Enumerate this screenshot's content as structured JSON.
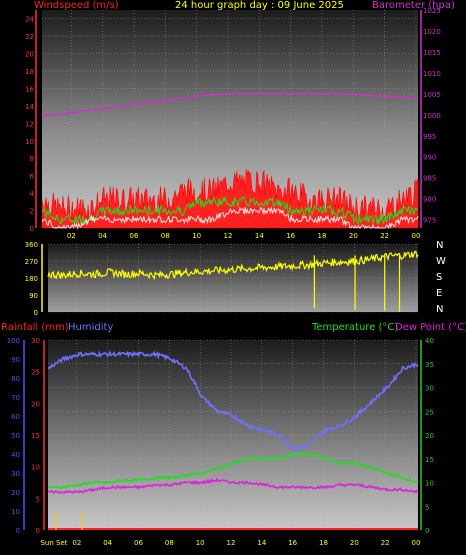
{
  "header": {
    "title": "24 hour graph day : 09 June 2025",
    "wind_label": "Windspeed (m/s)",
    "baro_label": "Barometer (hpa)"
  },
  "bottom_labels": {
    "rain": "Rainfall (mm)",
    "humidity": "Humidity",
    "temperature": "Temperature (°C)",
    "dewpoint": "Dew Point (°C)"
  },
  "compass": [
    "N",
    "W",
    "S",
    "E",
    "N"
  ],
  "colors": {
    "wind": "#ff0000",
    "gust": "#ff2020",
    "baro": "#cc33cc",
    "winddir": "#ffff00",
    "humidity": "#7070ff",
    "temperature": "#22dd22",
    "dewpoint": "#dd22dd",
    "rain": "#ff2020",
    "axis_left": "#ff3030",
    "axis_humid": "#5050ff",
    "axis_right_green": "#22cc22",
    "axis_baro": "#cc33cc"
  },
  "chart_data": [
    {
      "type": "line",
      "name": "wind_baro",
      "x_labels": [
        "02",
        "04",
        "06",
        "08",
        "10",
        "12",
        "14",
        "16",
        "18",
        "20",
        "22",
        "00"
      ],
      "y_left_ticks": [
        0,
        2,
        4,
        6,
        8,
        10,
        12,
        14,
        16,
        18,
        20,
        22,
        24
      ],
      "y_right_ticks": [
        975,
        980,
        985,
        990,
        995,
        1000,
        1005,
        1010,
        1015,
        1020,
        1025
      ],
      "ylim_left": [
        0,
        25
      ],
      "ylim_right": [
        973,
        1025
      ],
      "series": [
        {
          "name": "wind_gust",
          "values": [
            3,
            2,
            2,
            2,
            3,
            3,
            3,
            3,
            3,
            4,
            4,
            4,
            5,
            5,
            5,
            4,
            4,
            3,
            3,
            3,
            2,
            2,
            2,
            3,
            4
          ]
        },
        {
          "name": "wind_avg",
          "values": [
            2,
            1,
            1,
            1,
            2,
            2,
            2,
            2,
            2,
            2,
            3,
            3,
            3,
            3,
            3,
            3,
            2,
            2,
            2,
            2,
            1,
            1,
            1,
            2,
            2
          ]
        },
        {
          "name": "wind_min",
          "values": [
            1,
            0,
            0,
            1,
            1,
            1,
            1,
            1,
            1,
            1,
            1,
            1,
            2,
            2,
            2,
            2,
            1,
            1,
            1,
            1,
            0,
            0,
            0,
            1,
            1
          ]
        },
        {
          "name": "barometer",
          "values": [
            1000,
            1000,
            1000.5,
            1001,
            1001.5,
            1002,
            1002.5,
            1003,
            1003.5,
            1004,
            1004.5,
            1004.8,
            1005,
            1005,
            1005,
            1005,
            1005,
            1005,
            1005,
            1005,
            1004.8,
            1004.6,
            1004.4,
            1004.2,
            1004
          ]
        }
      ]
    },
    {
      "type": "scatter",
      "name": "wind_direction",
      "y_ticks": [
        0,
        90,
        180,
        270,
        360
      ],
      "ylim": [
        0,
        360
      ],
      "values": [
        200,
        195,
        205,
        200,
        210,
        200,
        205,
        195,
        200,
        210,
        215,
        220,
        225,
        230,
        235,
        240,
        245,
        250,
        260,
        265,
        270,
        280,
        295,
        300,
        310
      ]
    },
    {
      "type": "line",
      "name": "temp_hum_rain",
      "x_labels": [
        "Sun Set",
        "02",
        "04",
        "06",
        "08",
        "10",
        "12",
        "14",
        "16",
        "18",
        "20",
        "22",
        "00"
      ],
      "y_humidity_ticks": [
        0,
        10,
        20,
        30,
        40,
        50,
        60,
        70,
        80,
        90,
        100
      ],
      "y_rain_ticks": [
        0,
        5,
        10,
        15,
        20,
        25,
        30
      ],
      "y_temp_ticks": [
        0,
        5,
        10,
        15,
        20,
        25,
        30,
        35,
        40
      ],
      "ylim_temp": [
        0,
        40
      ],
      "series": [
        {
          "name": "humidity_temp_scale",
          "values": [
            34,
            36,
            37,
            37,
            37,
            37,
            37,
            37,
            36,
            34,
            28,
            25,
            24,
            22,
            21,
            20,
            17,
            18,
            21,
            22,
            24,
            27,
            30,
            34,
            35
          ]
        },
        {
          "name": "temperature",
          "values": [
            9,
            9,
            9.5,
            10,
            10,
            10.5,
            10.5,
            11,
            11,
            11.5,
            12,
            13,
            14,
            15,
            15,
            15,
            16,
            16,
            15,
            14,
            14,
            13,
            12,
            11,
            10
          ]
        },
        {
          "name": "dew_point",
          "values": [
            8,
            8,
            8,
            8.5,
            9,
            9,
            9,
            9.5,
            9.5,
            10,
            10,
            10.5,
            10,
            10,
            9.5,
            9,
            9,
            9,
            9,
            9.5,
            9.5,
            9,
            8.5,
            8.5,
            8
          ]
        },
        {
          "name": "rainfall",
          "values": [
            0,
            0,
            0,
            0,
            0,
            0,
            0,
            0,
            0,
            0,
            0,
            0,
            0,
            0,
            0,
            0,
            0,
            0,
            0,
            0,
            0,
            0,
            0,
            0,
            0
          ]
        }
      ]
    }
  ]
}
